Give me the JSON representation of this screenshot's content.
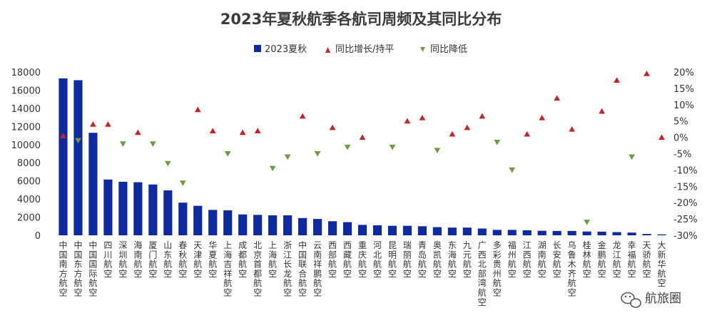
{
  "chart_data": {
    "type": "bar",
    "title": "2023年夏秋航季各航司周频及其同比分布",
    "legend": {
      "placement": "top",
      "items": [
        {
          "label": "2023夏秋",
          "marker": "square"
        },
        {
          "label": "同比增长/持平",
          "marker": "triangle-up"
        },
        {
          "label": "同比降低",
          "marker": "triangle-down"
        }
      ]
    },
    "categories": [
      "中国南方航空",
      "中国东方航空",
      "中国国际航空",
      "四川航空",
      "深圳航空",
      "海南航空",
      "厦门航空",
      "山东航空",
      "春秋航空",
      "天津航空",
      "华夏航空",
      "上海吉祥航空",
      "成都航空",
      "北京首都航空",
      "上海航空",
      "浙江长龙航空",
      "中国联合航空",
      "云南祥鹏航空",
      "西部航空",
      "西藏航空",
      "重庆航空",
      "河北航空",
      "昆明航空",
      "瑞丽航空",
      "青岛航空",
      "奥凯航空",
      "东海航空",
      "九元航空",
      "广西北部湾航空",
      "多彩贵州航空",
      "福州航空",
      "江西航空",
      "湖南航空",
      "长安航空",
      "乌鲁木齐航空",
      "桂林航空",
      "金鹏航空",
      "龙江航空",
      "幸福航空",
      "天骄航空",
      "大新华航空"
    ],
    "series": [
      {
        "name": "2023夏秋",
        "type": "bar",
        "axis": "left",
        "values": [
          17300,
          17100,
          11300,
          6150,
          5900,
          5850,
          5600,
          4950,
          3600,
          3250,
          2800,
          2750,
          2300,
          2250,
          2200,
          2200,
          1900,
          1800,
          1550,
          1450,
          1150,
          1100,
          1050,
          1050,
          1000,
          900,
          850,
          850,
          750,
          600,
          600,
          550,
          500,
          480,
          480,
          420,
          400,
          350,
          300,
          150,
          100
        ]
      },
      {
        "name": "同比增长/持平",
        "type": "scatter",
        "axis": "right",
        "marker": "triangle-up",
        "points": [
          [
            0,
            0.5
          ],
          [
            2,
            4
          ],
          [
            3,
            4
          ],
          [
            5,
            1.5
          ],
          [
            9,
            8.5
          ],
          [
            10,
            2
          ],
          [
            12,
            1.5
          ],
          [
            13,
            2
          ],
          [
            16,
            6.5
          ],
          [
            18,
            3
          ],
          [
            20,
            0
          ],
          [
            23,
            5
          ],
          [
            24,
            6
          ],
          [
            26,
            1
          ],
          [
            27,
            3
          ],
          [
            28,
            6.5
          ],
          [
            31,
            1
          ],
          [
            32,
            6
          ],
          [
            33,
            12
          ],
          [
            34,
            2.5
          ],
          [
            36,
            8
          ],
          [
            37,
            17.5
          ],
          [
            39,
            19.5
          ],
          [
            40,
            0
          ]
        ]
      },
      {
        "name": "同比降低",
        "type": "scatter",
        "axis": "right",
        "marker": "triangle-down",
        "points": [
          [
            1,
            -1
          ],
          [
            4,
            -2
          ],
          [
            6,
            -2
          ],
          [
            7,
            -8
          ],
          [
            8,
            -14
          ],
          [
            11,
            -5
          ],
          [
            14,
            -9.5
          ],
          [
            15,
            -6
          ],
          [
            17,
            -5
          ],
          [
            19,
            -3
          ],
          [
            22,
            -3
          ],
          [
            25,
            -4
          ],
          [
            29,
            -1.5
          ],
          [
            30,
            -10
          ],
          [
            35,
            -26
          ],
          [
            38,
            -6
          ]
        ]
      }
    ],
    "y_left": {
      "min": 0,
      "max": 18000,
      "ticks": [
        "0",
        "2000",
        "4000",
        "6000",
        "8000",
        "10000",
        "12000",
        "14000",
        "16000",
        "18000"
      ]
    },
    "y_right": {
      "min": -30,
      "max": 20,
      "ticks": [
        "-30%",
        "-25%",
        "-20%",
        "-15%",
        "-10%",
        "-5%",
        "0%",
        "5%",
        "10%",
        "15%",
        "20%"
      ]
    },
    "grid": false,
    "colors": {
      "bar": "#0f2a9e",
      "up": "#c0272d",
      "down": "#6f9c43"
    }
  },
  "watermark": {
    "text": "航旅圈",
    "icon": "wechat-icon"
  }
}
